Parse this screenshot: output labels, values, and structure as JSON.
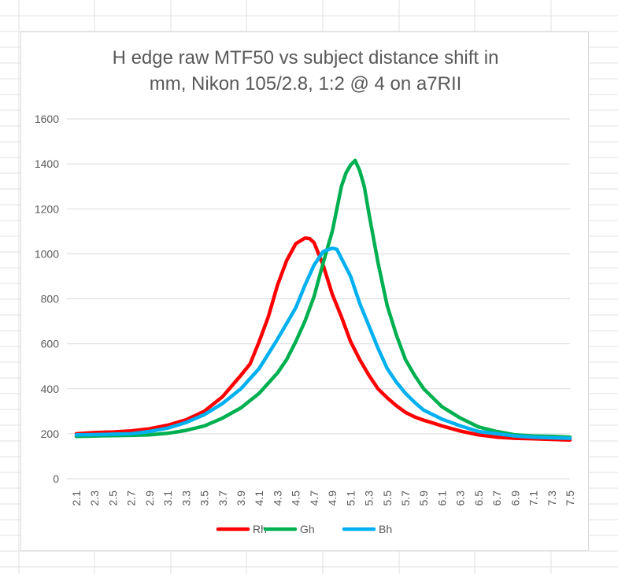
{
  "chart_data": {
    "type": "line",
    "title_lines": [
      "H edge raw MTF50 vs subject distance shift in",
      "mm, Nikon 105/2.8, 1:2 @ 4 on a7RII"
    ],
    "xlabel": "",
    "ylabel": "",
    "ylim": [
      0,
      1600
    ],
    "yticks": [
      0,
      200,
      400,
      600,
      800,
      1000,
      1200,
      1400,
      1600
    ],
    "xlim": [
      2.1,
      7.5
    ],
    "xticks": [
      2.1,
      2.3,
      2.5,
      2.7,
      2.9,
      3.1,
      3.3,
      3.5,
      3.7,
      3.9,
      4.1,
      4.3,
      4.5,
      4.7,
      4.9,
      5.1,
      5.3,
      5.5,
      5.7,
      5.9,
      6.1,
      6.3,
      6.5,
      6.7,
      6.9,
      7.1,
      7.3,
      7.5
    ],
    "xtick_labels": [
      "2.1",
      "2.3",
      "2.5",
      "2.7",
      "2.9",
      "3.1",
      "3.3",
      "3.5",
      "3.7",
      "3.9",
      "4.1",
      "4.3",
      "4.5",
      "4.7",
      "4.9",
      "5.1",
      "5.3",
      "5.5",
      "5.7",
      "5.9",
      "6.1",
      "6.3",
      "6.5",
      "6.7",
      "6.9",
      "7.1",
      "7.3",
      "7.5"
    ],
    "grid": "horizontal",
    "legend_position": "bottom",
    "series": [
      {
        "name": "Rh",
        "color": "#ff0000",
        "points": [
          [
            2.1,
            200
          ],
          [
            2.3,
            205
          ],
          [
            2.5,
            208
          ],
          [
            2.7,
            213
          ],
          [
            2.9,
            222
          ],
          [
            3.1,
            238
          ],
          [
            3.3,
            262
          ],
          [
            3.5,
            300
          ],
          [
            3.7,
            365
          ],
          [
            3.9,
            460
          ],
          [
            4.0,
            510
          ],
          [
            4.1,
            610
          ],
          [
            4.2,
            720
          ],
          [
            4.3,
            860
          ],
          [
            4.4,
            970
          ],
          [
            4.5,
            1045
          ],
          [
            4.6,
            1070
          ],
          [
            4.65,
            1068
          ],
          [
            4.7,
            1050
          ],
          [
            4.8,
            950
          ],
          [
            4.9,
            820
          ],
          [
            5.0,
            720
          ],
          [
            5.1,
            610
          ],
          [
            5.2,
            530
          ],
          [
            5.3,
            460
          ],
          [
            5.4,
            400
          ],
          [
            5.5,
            360
          ],
          [
            5.6,
            325
          ],
          [
            5.7,
            295
          ],
          [
            5.8,
            275
          ],
          [
            5.9,
            260
          ],
          [
            6.0,
            248
          ],
          [
            6.1,
            235
          ],
          [
            6.3,
            212
          ],
          [
            6.5,
            195
          ],
          [
            6.7,
            185
          ],
          [
            6.9,
            180
          ],
          [
            7.1,
            178
          ],
          [
            7.3,
            175
          ],
          [
            7.5,
            172
          ]
        ]
      },
      {
        "name": "Gh",
        "color": "#00b050",
        "points": [
          [
            2.1,
            188
          ],
          [
            2.3,
            190
          ],
          [
            2.5,
            192
          ],
          [
            2.7,
            193
          ],
          [
            2.9,
            195
          ],
          [
            3.1,
            202
          ],
          [
            3.3,
            215
          ],
          [
            3.5,
            235
          ],
          [
            3.7,
            270
          ],
          [
            3.9,
            315
          ],
          [
            4.1,
            380
          ],
          [
            4.3,
            470
          ],
          [
            4.4,
            530
          ],
          [
            4.5,
            610
          ],
          [
            4.6,
            700
          ],
          [
            4.7,
            810
          ],
          [
            4.8,
            960
          ],
          [
            4.9,
            1100
          ],
          [
            4.95,
            1200
          ],
          [
            5.0,
            1300
          ],
          [
            5.05,
            1360
          ],
          [
            5.1,
            1395
          ],
          [
            5.15,
            1415
          ],
          [
            5.2,
            1370
          ],
          [
            5.25,
            1300
          ],
          [
            5.3,
            1180
          ],
          [
            5.4,
            960
          ],
          [
            5.5,
            770
          ],
          [
            5.6,
            640
          ],
          [
            5.7,
            530
          ],
          [
            5.8,
            460
          ],
          [
            5.9,
            400
          ],
          [
            6.0,
            360
          ],
          [
            6.1,
            320
          ],
          [
            6.3,
            270
          ],
          [
            6.5,
            230
          ],
          [
            6.7,
            210
          ],
          [
            6.9,
            195
          ],
          [
            7.1,
            190
          ],
          [
            7.3,
            188
          ],
          [
            7.5,
            185
          ]
        ]
      },
      {
        "name": "Bh",
        "color": "#00b0f0",
        "points": [
          [
            2.1,
            195
          ],
          [
            2.3,
            196
          ],
          [
            2.5,
            198
          ],
          [
            2.7,
            200
          ],
          [
            2.9,
            210
          ],
          [
            3.1,
            225
          ],
          [
            3.3,
            250
          ],
          [
            3.5,
            285
          ],
          [
            3.7,
            335
          ],
          [
            3.9,
            400
          ],
          [
            4.1,
            490
          ],
          [
            4.3,
            620
          ],
          [
            4.5,
            760
          ],
          [
            4.6,
            860
          ],
          [
            4.7,
            950
          ],
          [
            4.8,
            1010
          ],
          [
            4.9,
            1025
          ],
          [
            4.95,
            1020
          ],
          [
            5.0,
            980
          ],
          [
            5.1,
            900
          ],
          [
            5.2,
            780
          ],
          [
            5.3,
            680
          ],
          [
            5.4,
            580
          ],
          [
            5.5,
            490
          ],
          [
            5.6,
            430
          ],
          [
            5.7,
            380
          ],
          [
            5.8,
            340
          ],
          [
            5.9,
            305
          ],
          [
            6.1,
            265
          ],
          [
            6.3,
            235
          ],
          [
            6.5,
            210
          ],
          [
            6.7,
            200
          ],
          [
            6.9,
            190
          ],
          [
            7.1,
            185
          ],
          [
            7.3,
            182
          ],
          [
            7.5,
            180
          ]
        ]
      }
    ]
  }
}
